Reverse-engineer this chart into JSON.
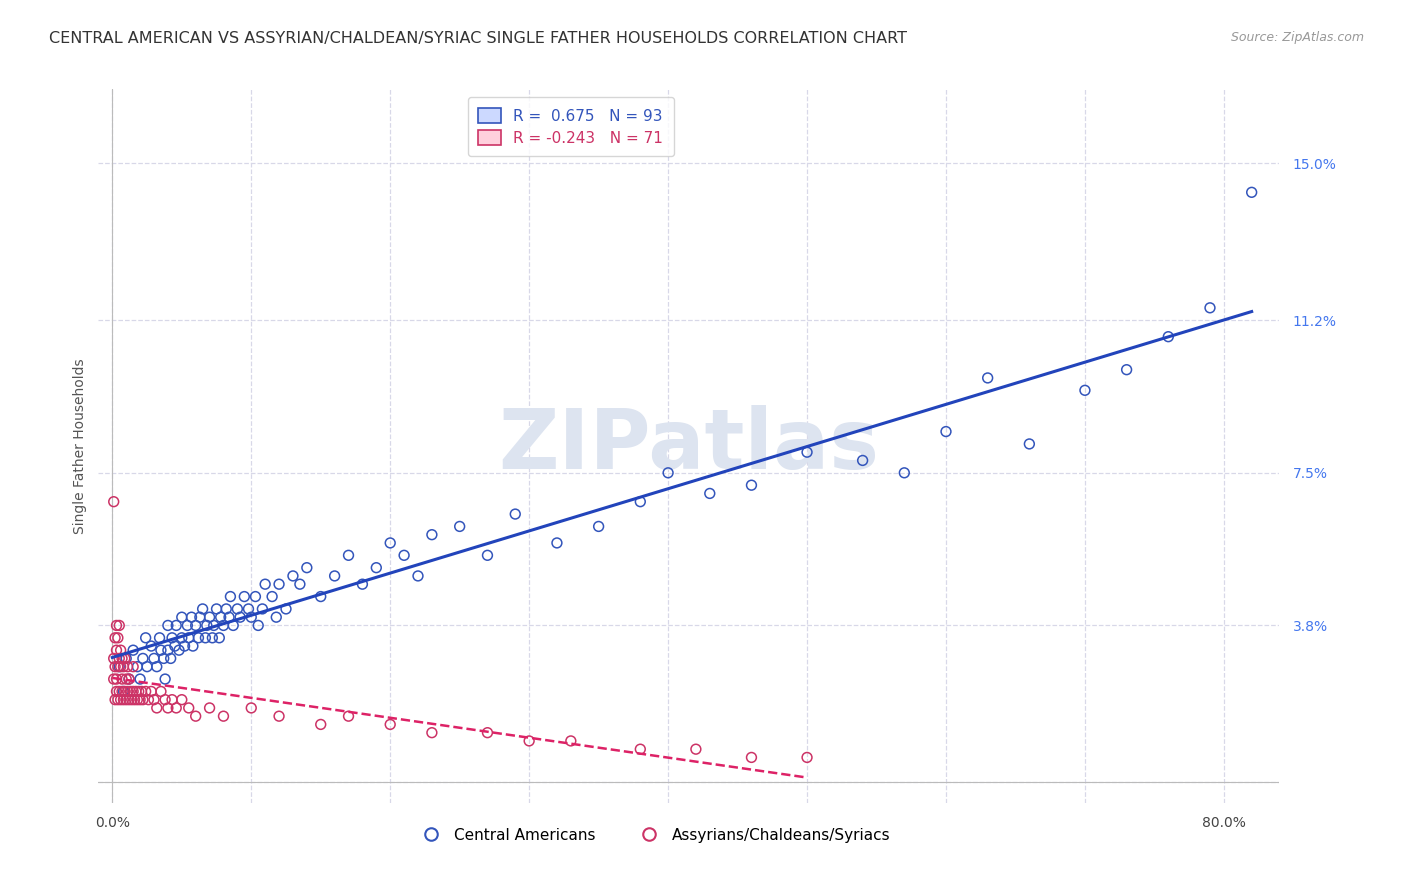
{
  "title": "CENTRAL AMERICAN VS ASSYRIAN/CHALDEAN/SYRIAC SINGLE FATHER HOUSEHOLDS CORRELATION CHART",
  "source": "Source: ZipAtlas.com",
  "ylabel": "Single Father Households",
  "x_tick_positions": [
    0.0,
    0.1,
    0.2,
    0.3,
    0.4,
    0.5,
    0.6,
    0.7,
    0.8
  ],
  "x_tick_labels": [
    "0.0%",
    "",
    "",
    "",
    "",
    "",
    "",
    "",
    "80.0%"
  ],
  "y_ticks": [
    0.0,
    0.038,
    0.075,
    0.112,
    0.15
  ],
  "y_tick_labels": [
    "",
    "3.8%",
    "7.5%",
    "11.2%",
    "15.0%"
  ],
  "xlim": [
    -0.01,
    0.84
  ],
  "ylim": [
    -0.005,
    0.168
  ],
  "blue_R": "0.675",
  "blue_N": "93",
  "pink_R": "-0.243",
  "pink_N": "71",
  "blue_scatter_color": "#aabfff",
  "blue_edge_color": "#3355bb",
  "pink_scatter_color": "#ffaabb",
  "pink_edge_color": "#cc3366",
  "blue_line_color": "#2244bb",
  "pink_line_color": "#dd2266",
  "grid_color": "#d8d8e8",
  "background_color": "#ffffff",
  "watermark": "ZIPatlas",
  "watermark_color": "#dde4f0",
  "title_fontsize": 11.5,
  "tick_fontsize": 10,
  "legend_fontsize": 11,
  "blue_legend_label": "R =  0.675   N = 93",
  "pink_legend_label": "R = -0.243   N = 71",
  "bottom_legend_blue": "Central Americans",
  "bottom_legend_pink": "Assyrians/Chaldeans/Syriacs",
  "blue_scatter_x": [
    0.005,
    0.008,
    0.01,
    0.012,
    0.015,
    0.018,
    0.02,
    0.022,
    0.024,
    0.025,
    0.028,
    0.03,
    0.032,
    0.034,
    0.035,
    0.037,
    0.038,
    0.04,
    0.04,
    0.042,
    0.043,
    0.045,
    0.046,
    0.048,
    0.05,
    0.05,
    0.052,
    0.054,
    0.055,
    0.057,
    0.058,
    0.06,
    0.062,
    0.063,
    0.065,
    0.067,
    0.068,
    0.07,
    0.072,
    0.073,
    0.075,
    0.077,
    0.078,
    0.08,
    0.082,
    0.084,
    0.085,
    0.087,
    0.09,
    0.092,
    0.095,
    0.098,
    0.1,
    0.103,
    0.105,
    0.108,
    0.11,
    0.115,
    0.118,
    0.12,
    0.125,
    0.13,
    0.135,
    0.14,
    0.15,
    0.16,
    0.17,
    0.18,
    0.19,
    0.2,
    0.21,
    0.22,
    0.23,
    0.25,
    0.27,
    0.29,
    0.32,
    0.35,
    0.38,
    0.4,
    0.43,
    0.46,
    0.5,
    0.54,
    0.57,
    0.6,
    0.63,
    0.66,
    0.7,
    0.73,
    0.76,
    0.79,
    0.82
  ],
  "blue_scatter_y": [
    0.028,
    0.022,
    0.03,
    0.025,
    0.032,
    0.028,
    0.025,
    0.03,
    0.035,
    0.028,
    0.033,
    0.03,
    0.028,
    0.035,
    0.032,
    0.03,
    0.025,
    0.038,
    0.032,
    0.03,
    0.035,
    0.033,
    0.038,
    0.032,
    0.035,
    0.04,
    0.033,
    0.038,
    0.035,
    0.04,
    0.033,
    0.038,
    0.035,
    0.04,
    0.042,
    0.035,
    0.038,
    0.04,
    0.035,
    0.038,
    0.042,
    0.035,
    0.04,
    0.038,
    0.042,
    0.04,
    0.045,
    0.038,
    0.042,
    0.04,
    0.045,
    0.042,
    0.04,
    0.045,
    0.038,
    0.042,
    0.048,
    0.045,
    0.04,
    0.048,
    0.042,
    0.05,
    0.048,
    0.052,
    0.045,
    0.05,
    0.055,
    0.048,
    0.052,
    0.058,
    0.055,
    0.05,
    0.06,
    0.062,
    0.055,
    0.065,
    0.058,
    0.062,
    0.068,
    0.075,
    0.07,
    0.072,
    0.08,
    0.078,
    0.075,
    0.085,
    0.098,
    0.082,
    0.095,
    0.1,
    0.108,
    0.115,
    0.143
  ],
  "pink_scatter_x": [
    0.001,
    0.001,
    0.002,
    0.002,
    0.002,
    0.003,
    0.003,
    0.003,
    0.003,
    0.004,
    0.004,
    0.004,
    0.005,
    0.005,
    0.005,
    0.006,
    0.006,
    0.006,
    0.007,
    0.007,
    0.007,
    0.008,
    0.008,
    0.009,
    0.009,
    0.01,
    0.01,
    0.011,
    0.011,
    0.012,
    0.012,
    0.013,
    0.014,
    0.015,
    0.015,
    0.016,
    0.017,
    0.018,
    0.019,
    0.02,
    0.021,
    0.022,
    0.024,
    0.026,
    0.028,
    0.03,
    0.032,
    0.035,
    0.038,
    0.04,
    0.043,
    0.046,
    0.05,
    0.055,
    0.06,
    0.07,
    0.08,
    0.1,
    0.12,
    0.15,
    0.17,
    0.2,
    0.23,
    0.27,
    0.3,
    0.33,
    0.38,
    0.42,
    0.46,
    0.5,
    0.001
  ],
  "pink_scatter_y": [
    0.025,
    0.03,
    0.02,
    0.028,
    0.035,
    0.022,
    0.032,
    0.025,
    0.038,
    0.02,
    0.028,
    0.035,
    0.022,
    0.03,
    0.038,
    0.02,
    0.028,
    0.032,
    0.022,
    0.03,
    0.025,
    0.02,
    0.028,
    0.022,
    0.03,
    0.02,
    0.025,
    0.022,
    0.028,
    0.02,
    0.025,
    0.022,
    0.02,
    0.022,
    0.028,
    0.02,
    0.022,
    0.02,
    0.022,
    0.02,
    0.022,
    0.02,
    0.022,
    0.02,
    0.022,
    0.02,
    0.018,
    0.022,
    0.02,
    0.018,
    0.02,
    0.018,
    0.02,
    0.018,
    0.016,
    0.018,
    0.016,
    0.018,
    0.016,
    0.014,
    0.016,
    0.014,
    0.012,
    0.012,
    0.01,
    0.01,
    0.008,
    0.008,
    0.006,
    0.006,
    0.068
  ]
}
